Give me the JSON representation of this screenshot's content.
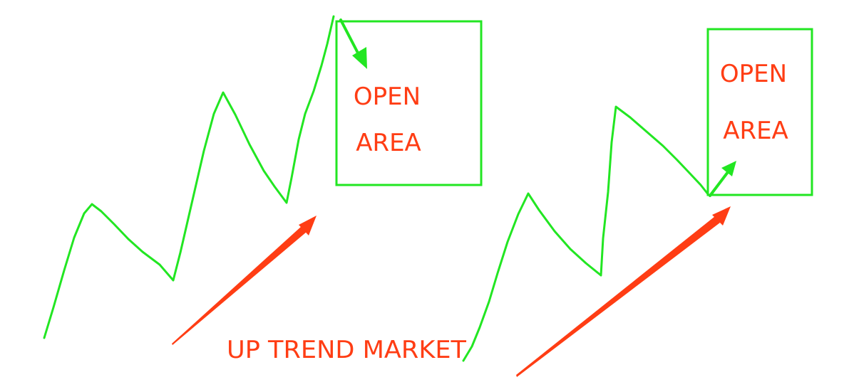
{
  "colors": {
    "green": "#22e622",
    "red": "#ff3d14",
    "text": "#ff3d14"
  },
  "labels": {
    "left_open": "OPEN",
    "left_area": "AREA",
    "right_open": "OPEN",
    "right_area": "AREA",
    "caption": "UP TREND MARKET"
  }
}
